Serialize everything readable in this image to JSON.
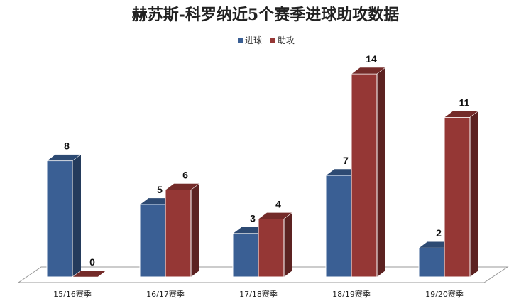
{
  "chart_data": {
    "type": "bar",
    "title": "赫苏斯-科罗纳近5个赛季进球助攻数据",
    "categories": [
      "15/16赛季",
      "16/17赛季",
      "17/18赛季",
      "18/19赛季",
      "19/20赛季"
    ],
    "series": [
      {
        "name": "进球",
        "values": [
          8,
          5,
          3,
          7,
          2
        ],
        "color": "#3A5F94"
      },
      {
        "name": "助攻",
        "values": [
          0,
          6,
          4,
          14,
          11
        ],
        "color": "#953735"
      }
    ],
    "ylim": [
      0,
      14
    ],
    "grid": false,
    "legend": "top-center",
    "style": "3d-column",
    "data_labels": true
  }
}
